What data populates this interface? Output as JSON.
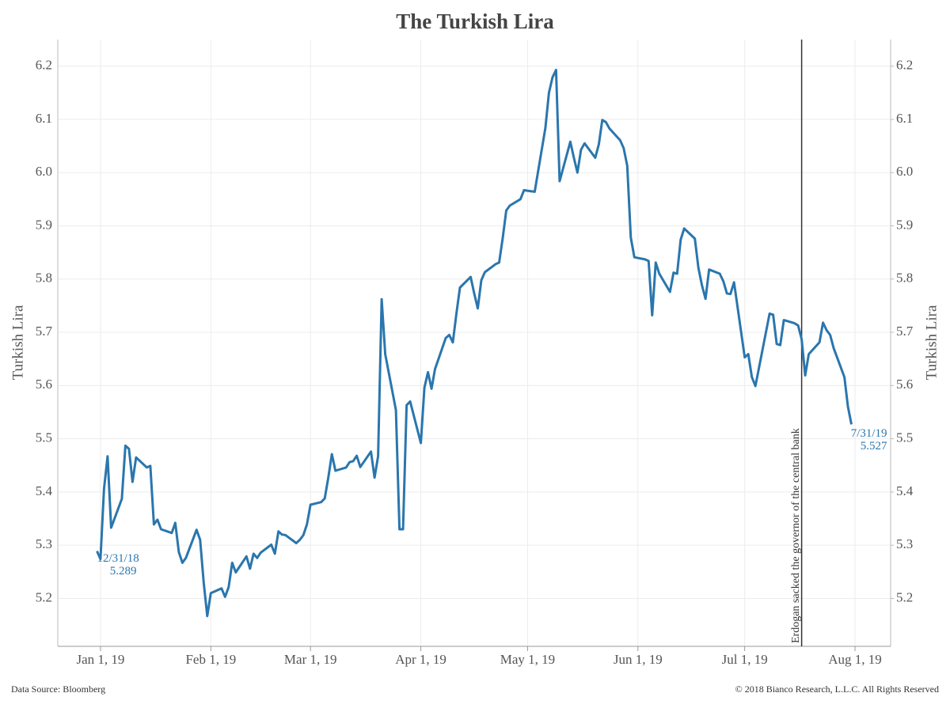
{
  "chart_data": {
    "type": "line",
    "title": "The Turkish Lira",
    "y_label": "Turkish Lira",
    "y2_label": "Turkish Lira",
    "source": "Data Source: Bloomberg",
    "copyright": "© 2018 Bianco Research, L.L.C. All Rights Reserved",
    "grid": true,
    "xlim": [
      "2018-12-20",
      "2019-08-11"
    ],
    "xticks": [
      {
        "value": "2019-01-01",
        "label": "Jan 1, 19"
      },
      {
        "value": "2019-02-01",
        "label": "Feb 1, 19"
      },
      {
        "value": "2019-03-01",
        "label": "Mar 1, 19"
      },
      {
        "value": "2019-04-01",
        "label": "Apr 1, 19"
      },
      {
        "value": "2019-05-01",
        "label": "May 1, 19"
      },
      {
        "value": "2019-06-01",
        "label": "Jun 1, 19"
      },
      {
        "value": "2019-07-01",
        "label": "Jul 1, 19"
      },
      {
        "value": "2019-08-01",
        "label": "Aug 1, 19"
      }
    ],
    "ylim": [
      5.11,
      6.25
    ],
    "yticks": [
      5.2,
      5.3,
      5.4,
      5.5,
      5.6,
      5.7,
      5.8,
      5.9,
      {
        "value": 6,
        "label": "6.0"
      },
      6.1,
      6.2
    ],
    "y2lim": [
      5.11,
      6.25
    ],
    "y2ticks": [
      5.2,
      5.3,
      5.4,
      5.5,
      5.6,
      5.7,
      5.8,
      5.9,
      {
        "value": 6,
        "label": "6.0"
      },
      6.1,
      6.2
    ],
    "x": [
      "2018-12-31",
      "2019-01-01",
      "2019-01-02",
      "2019-01-03",
      "2019-01-04",
      "2019-01-07",
      "2019-01-08",
      "2019-01-09",
      "2019-01-10",
      "2019-01-11",
      "2019-01-14",
      "2019-01-15",
      "2019-01-16",
      "2019-01-17",
      "2019-01-18",
      "2019-01-21",
      "2019-01-22",
      "2019-01-23",
      "2019-01-24",
      "2019-01-25",
      "2019-01-28",
      "2019-01-29",
      "2019-01-30",
      "2019-01-31",
      "2019-02-01",
      "2019-02-04",
      "2019-02-05",
      "2019-02-06",
      "2019-02-07",
      "2019-02-08",
      "2019-02-11",
      "2019-02-12",
      "2019-02-13",
      "2019-02-14",
      "2019-02-15",
      "2019-02-18",
      "2019-02-19",
      "2019-02-20",
      "2019-02-21",
      "2019-02-22",
      "2019-02-25",
      "2019-02-26",
      "2019-02-27",
      "2019-02-28",
      "2019-03-01",
      "2019-03-04",
      "2019-03-05",
      "2019-03-06",
      "2019-03-07",
      "2019-03-08",
      "2019-03-11",
      "2019-03-12",
      "2019-03-13",
      "2019-03-14",
      "2019-03-15",
      "2019-03-18",
      "2019-03-19",
      "2019-03-20",
      "2019-03-21",
      "2019-03-22",
      "2019-03-25",
      "2019-03-26",
      "2019-03-27",
      "2019-03-28",
      "2019-03-29",
      "2019-04-01",
      "2019-04-02",
      "2019-04-03",
      "2019-04-04",
      "2019-04-05",
      "2019-04-08",
      "2019-04-09",
      "2019-04-10",
      "2019-04-11",
      "2019-04-12",
      "2019-04-15",
      "2019-04-16",
      "2019-04-17",
      "2019-04-18",
      "2019-04-19",
      "2019-04-22",
      "2019-04-23",
      "2019-04-24",
      "2019-04-25",
      "2019-04-26",
      "2019-04-29",
      "2019-04-30",
      "2019-05-01",
      "2019-05-03",
      "2019-05-06",
      "2019-05-07",
      "2019-05-08",
      "2019-05-09",
      "2019-05-10",
      "2019-05-13",
      "2019-05-14",
      "2019-05-15",
      "2019-05-16",
      "2019-05-17",
      "2019-05-20",
      "2019-05-21",
      "2019-05-22",
      "2019-05-23",
      "2019-05-24",
      "2019-05-27",
      "2019-05-28",
      "2019-05-29",
      "2019-05-30",
      "2019-05-31",
      "2019-06-03",
      "2019-06-04",
      "2019-06-05",
      "2019-06-06",
      "2019-06-07",
      "2019-06-10",
      "2019-06-11",
      "2019-06-12",
      "2019-06-13",
      "2019-06-14",
      "2019-06-17",
      "2019-06-18",
      "2019-06-19",
      "2019-06-20",
      "2019-06-21",
      "2019-06-24",
      "2019-06-25",
      "2019-06-26",
      "2019-06-27",
      "2019-06-28",
      "2019-07-01",
      "2019-07-02",
      "2019-07-03",
      "2019-07-04",
      "2019-07-08",
      "2019-07-09",
      "2019-07-10",
      "2019-07-11",
      "2019-07-12",
      "2019-07-15",
      "2019-07-16",
      "2019-07-17",
      "2019-07-18",
      "2019-07-19",
      "2019-07-22",
      "2019-07-23",
      "2019-07-24",
      "2019-07-25",
      "2019-07-26",
      "2019-07-29",
      "2019-07-30",
      "2019-07-31"
    ],
    "series": [
      {
        "color": "#2a76ad",
        "values": [
          5.289,
          5.274,
          5.406,
          5.467,
          5.333,
          5.387,
          5.487,
          5.481,
          5.419,
          5.465,
          5.446,
          5.449,
          5.339,
          5.348,
          5.33,
          5.323,
          5.342,
          5.287,
          5.267,
          5.276,
          5.329,
          5.31,
          5.23,
          5.167,
          5.21,
          5.219,
          5.203,
          5.221,
          5.267,
          5.249,
          5.279,
          5.256,
          5.284,
          5.276,
          5.286,
          5.301,
          5.284,
          5.326,
          5.32,
          5.319,
          5.304,
          5.31,
          5.319,
          5.339,
          5.376,
          5.381,
          5.388,
          5.427,
          5.471,
          5.44,
          5.446,
          5.456,
          5.458,
          5.468,
          5.447,
          5.476,
          5.427,
          5.467,
          5.762,
          5.659,
          5.554,
          5.33,
          5.33,
          5.563,
          5.57,
          5.492,
          5.596,
          5.625,
          5.594,
          5.631,
          5.689,
          5.695,
          5.681,
          5.735,
          5.784,
          5.804,
          5.773,
          5.745,
          5.798,
          5.813,
          5.828,
          5.831,
          5.877,
          5.929,
          5.938,
          5.95,
          5.967,
          5.966,
          5.964,
          6.084,
          6.15,
          6.179,
          6.193,
          5.984,
          6.058,
          6.028,
          6.0,
          6.043,
          6.055,
          6.028,
          6.053,
          6.099,
          6.095,
          6.083,
          6.061,
          6.046,
          6.013,
          5.878,
          5.841,
          5.837,
          5.834,
          5.732,
          5.831,
          5.81,
          5.776,
          5.812,
          5.81,
          5.874,
          5.895,
          5.876,
          5.821,
          5.788,
          5.763,
          5.818,
          5.81,
          5.796,
          5.773,
          5.772,
          5.794,
          5.653,
          5.659,
          5.616,
          5.599,
          5.735,
          5.733,
          5.678,
          5.676,
          5.723,
          5.717,
          5.713,
          5.687,
          5.619,
          5.659,
          5.681,
          5.718,
          5.704,
          5.695,
          5.67,
          5.616,
          5.56,
          5.527
        ]
      }
    ],
    "annotations": [
      {
        "x": "2018-12-31",
        "text": "12/31/18",
        "value": 5.289
      },
      {
        "x": "2019-07-31",
        "text": "7/31/19",
        "value": 5.527
      }
    ],
    "vline": {
      "x": "2019-07-17",
      "text": "Erdogan sacked the governor of the central bank"
    }
  }
}
